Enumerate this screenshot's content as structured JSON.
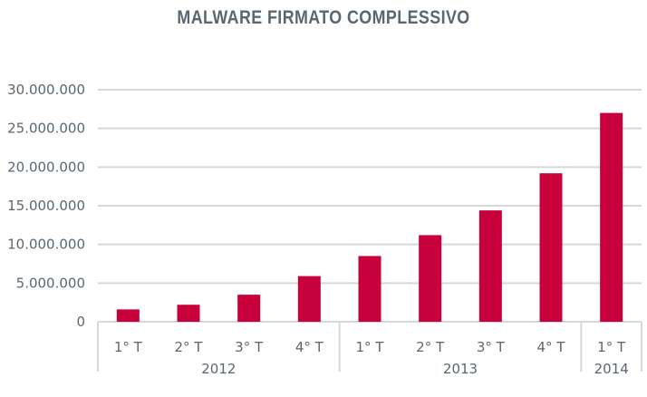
{
  "chart_data": {
    "type": "bar",
    "title": "MALWARE FIRMATO COMPLESSIVO",
    "categories": [
      "1° T",
      "2° T",
      "3° T",
      "4° T",
      "1° T",
      "2° T",
      "3° T",
      "4° T",
      "1° T"
    ],
    "groups": [
      {
        "label": "2012",
        "count": 4
      },
      {
        "label": "2013",
        "count": 4
      },
      {
        "label": "2014",
        "count": 1
      }
    ],
    "values": [
      1600000,
      2200000,
      3500000,
      5900000,
      8500000,
      11200000,
      14400000,
      19200000,
      27000000
    ],
    "yticks": [
      "0",
      "5.000.000",
      "10.000.000",
      "15.000.000",
      "20.000.000",
      "25.000.000",
      "30.000.000"
    ],
    "ylim": [
      0,
      30000000
    ],
    "grid": true,
    "colors": {
      "bar": "#c8003c",
      "grid": "#d5d8db",
      "text": "#5b6770"
    }
  }
}
